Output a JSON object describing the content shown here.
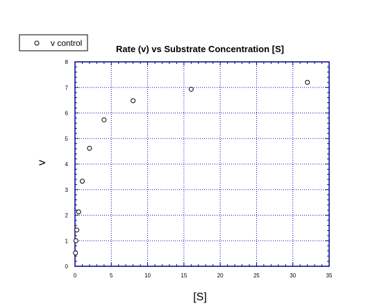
{
  "chart_data": {
    "type": "scatter",
    "title": "Rate (v) vs Substrate Concentration [S]",
    "xlabel": "[S]",
    "ylabel": "v",
    "xlim": [
      0,
      35
    ],
    "ylim": [
      0,
      8
    ],
    "x_ticks": [
      "0",
      "5",
      "10",
      "15",
      "20",
      "25",
      "30",
      "35"
    ],
    "y_ticks": [
      "0",
      "1",
      "2",
      "3",
      "4",
      "5",
      "6",
      "7",
      "8"
    ],
    "grid": true,
    "legend_position": "top-left",
    "marker": "open-circle",
    "colors": {
      "grid": "#0000cc",
      "axis": "#00008b",
      "marker": "#000000"
    },
    "series": [
      {
        "name": "v control",
        "x": [
          0.0625,
          0.125,
          0.25,
          0.5,
          1,
          2,
          4,
          8,
          16,
          32
        ],
        "y": [
          0.52,
          1.0,
          1.42,
          2.13,
          3.33,
          4.62,
          5.73,
          6.48,
          6.93,
          7.2
        ]
      }
    ]
  }
}
